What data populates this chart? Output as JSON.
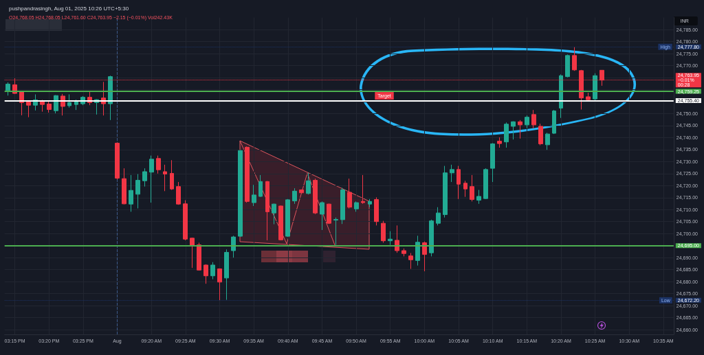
{
  "chart_data": {
    "type": "candlestick",
    "title": "pushpandrasingh, Aug 01, 2025 10:26 UTC+5:30",
    "subtitle": "O24,768.05 H24,768.05 L24,761.60 C24,763.95 −2.15 (−0.01%) Vol242.43K",
    "ylabel": "INR",
    "categories": [
      null,
      "03:15 PM",
      null,
      null,
      null,
      null,
      "03:20 PM",
      null,
      null,
      null,
      null,
      "03:25 PM",
      null,
      null,
      null,
      null,
      "Aug",
      null,
      null,
      null,
      null,
      "09:20 AM",
      null,
      null,
      null,
      null,
      "09:25 AM",
      null,
      null,
      null,
      null,
      "09:30 AM",
      null,
      null,
      null,
      null,
      "09:35 AM",
      null,
      null,
      null,
      null,
      "09:40 AM",
      null,
      null,
      null,
      null,
      "09:45 AM",
      null,
      null,
      null,
      null,
      "09:50 AM",
      null,
      null,
      null,
      null,
      "09:55 AM",
      null,
      null,
      null,
      null,
      "10:00 AM",
      null,
      null,
      null,
      null,
      "10:05 AM",
      null,
      null,
      null,
      null,
      "10:10 AM",
      null,
      null,
      null,
      null,
      "10:15 AM",
      null,
      null,
      null,
      null,
      "10:20 AM",
      null,
      null,
      null,
      null,
      "10:25 AM",
      null,
      null,
      null,
      null,
      "10:30 AM",
      null,
      null,
      null,
      null,
      "10:35 AM",
      null
    ],
    "ohlc": [
      [
        24759.6,
        24763.0,
        24757.5,
        24762.3
      ],
      [
        24762.0,
        24764.7,
        24758.2,
        24758.4
      ],
      [
        24759.2,
        24759.4,
        24749.3,
        24754.6
      ],
      [
        24755.2,
        24755.5,
        24748.5,
        24753.5
      ],
      [
        24753.5,
        24758.0,
        24751.3,
        24755.7
      ],
      [
        24755.0,
        24755.7,
        24750.8,
        24753.8
      ],
      [
        24754.0,
        24755.5,
        24750.4,
        24751.7
      ],
      [
        24751.2,
        24757.7,
        24750.1,
        24757.5
      ],
      [
        24757.3,
        24758.2,
        24749.2,
        24753.0
      ],
      [
        24753.3,
        24758.0,
        24752.5,
        24754.6
      ],
      [
        24753.8,
        24755.8,
        24751.5,
        24755.2
      ],
      [
        24754.1,
        24757.3,
        24753.5,
        24756.8
      ],
      [
        24756.8,
        24759.4,
        24753.5,
        24754.6
      ],
      [
        24754.6,
        24756.0,
        24749.6,
        24755.8
      ],
      [
        24756.5,
        24763.2,
        24749.2,
        24754.1
      ],
      [
        24754.1,
        24765.8,
        24747.3,
        24765.4
      ],
      [
        24737.7,
        24737.9,
        24722.5,
        24723.1
      ],
      [
        24722.9,
        24727.2,
        24712.2,
        24712.4
      ],
      [
        24712.3,
        24724.4,
        24709.1,
        24718.0
      ],
      [
        24716.4,
        24724.8,
        24710.5,
        24722.2
      ],
      [
        24722.0,
        24727.2,
        24719.6,
        24725.8
      ],
      [
        24725.6,
        24732.5,
        24712.9,
        24731.0
      ],
      [
        24731.3,
        24732.5,
        24725.0,
        24726.6
      ],
      [
        24725.8,
        24728.7,
        24717.7,
        24724.8
      ],
      [
        24725.1,
        24730.6,
        24718.2,
        24718.6
      ],
      [
        24719.6,
        24721.5,
        24712.0,
        24712.3
      ],
      [
        24712.4,
        24713.9,
        24697.2,
        24697.7
      ],
      [
        24698.1,
        24698.3,
        24685.7,
        24694.8
      ],
      [
        24695.3,
        24696.2,
        24684.6,
        24684.8
      ],
      [
        24686.9,
        24687.2,
        24679.1,
        24682.4
      ],
      [
        24682.4,
        24688.1,
        24681.0,
        24686.9
      ],
      [
        24685.3,
        24685.5,
        24672.2,
        24679.8
      ],
      [
        24681.5,
        24693.4,
        24672.4,
        24692.2
      ],
      [
        24692.9,
        24699.1,
        24690.0,
        24698.6
      ],
      [
        24698.9,
        24734.8,
        24698.7,
        24734.6
      ],
      [
        24736.0,
        24736.3,
        24712.9,
        24713.4
      ],
      [
        24712.9,
        24720.3,
        24711.5,
        24716.1
      ],
      [
        24715.5,
        24724.4,
        24715.3,
        24721.7
      ],
      [
        24721.7,
        24721.9,
        24697.2,
        24709.1
      ],
      [
        24708.6,
        24712.5,
        24703.9,
        24712.3
      ],
      [
        24711.5,
        24711.7,
        24697.2,
        24697.4
      ],
      [
        24698.9,
        24714.4,
        24698.6,
        24714.1
      ],
      [
        24713.6,
        24718.9,
        24712.4,
        24717.7
      ],
      [
        24718.2,
        24718.4,
        24716.8,
        24717.0
      ],
      [
        24716.7,
        24725.3,
        24716.3,
        24722.0
      ],
      [
        24722.2,
        24722.9,
        24708.1,
        24708.6
      ],
      [
        24708.1,
        24713.4,
        24701.5,
        24712.9
      ],
      [
        24712.3,
        24712.5,
        24704.0,
        24704.3
      ],
      [
        24705.6,
        24706.7,
        24695.3,
        24705.9
      ],
      [
        24705.8,
        24719.1,
        24704.0,
        24718.2
      ],
      [
        24717.2,
        24722.9,
        24710.5,
        24711.0
      ],
      [
        24710.3,
        24713.4,
        24709.1,
        24712.9
      ],
      [
        24713.4,
        24724.4,
        24712.4,
        24712.9
      ],
      [
        24712.3,
        24714.4,
        24711.0,
        24713.4
      ],
      [
        24714.2,
        24715.1,
        24703.4,
        24705.0
      ],
      [
        24704.3,
        24705.3,
        24696.2,
        24697.0
      ],
      [
        24697.0,
        24701.0,
        24695.3,
        24697.7
      ],
      [
        24697.2,
        24703.4,
        24692.0,
        24692.9
      ],
      [
        24692.9,
        24693.8,
        24690.5,
        24691.7
      ],
      [
        24690.7,
        24691.9,
        24685.3,
        24689.1
      ],
      [
        24688.8,
        24699.1,
        24686.7,
        24696.4
      ],
      [
        24696.2,
        24696.7,
        24684.3,
        24691.3
      ],
      [
        24692.0,
        24705.8,
        24690.5,
        24705.3
      ],
      [
        24704.3,
        24711.0,
        24703.4,
        24708.6
      ],
      [
        24707.9,
        24728.2,
        24706.7,
        24725.3
      ],
      [
        24725.3,
        24728.7,
        24721.5,
        24726.7
      ],
      [
        24726.7,
        24728.2,
        24714.4,
        24720.6
      ],
      [
        24721.0,
        24722.0,
        24715.3,
        24718.6
      ],
      [
        24719.6,
        24724.4,
        24713.4,
        24714.2
      ],
      [
        24713.9,
        24718.2,
        24712.4,
        24715.5
      ],
      [
        24714.6,
        24727.2,
        24714.4,
        24726.7
      ],
      [
        24727.2,
        24737.7,
        24721.5,
        24737.4
      ],
      [
        24738.5,
        24740.1,
        24735.8,
        24737.5
      ],
      [
        24738.2,
        24746.3,
        24735.8,
        24745.6
      ],
      [
        24744.7,
        24746.8,
        24739.2,
        24746.6
      ],
      [
        24746.6,
        24747.3,
        24739.6,
        24745.3
      ],
      [
        24745.3,
        24749.2,
        24743.9,
        24748.5
      ],
      [
        24749.6,
        24751.5,
        24743.9,
        24745.3
      ],
      [
        24744.7,
        24745.8,
        24736.8,
        24737.4
      ],
      [
        24737.0,
        24742.0,
        24734.9,
        24741.5
      ],
      [
        24741.8,
        24751.5,
        24741.5,
        24751.1
      ],
      [
        24752.3,
        24766.3,
        24748.2,
        24765.8
      ],
      [
        24765.4,
        24774.6,
        24765.1,
        24774.2
      ],
      [
        24774.2,
        24777.8,
        24767.8,
        24768.2
      ],
      [
        24767.9,
        24768.2,
        24751.7,
        24756.5
      ],
      [
        24757.0,
        24758.7,
        24755.3,
        24755.8
      ],
      [
        24756.1,
        24766.8,
        24755.5,
        24765.8
      ],
      [
        24768.05,
        24768.05,
        24761.6,
        24763.95
      ],
      null,
      null,
      null,
      null,
      null,
      null,
      null,
      null,
      null,
      null
    ],
    "colors": [
      "#22ab94",
      "#f23645",
      "#f23645",
      "#f23645",
      "#22ab94",
      "#f23645",
      "#f23645",
      "#22ab94",
      "#f23645",
      "#22ab94",
      "#22ab94",
      "#22ab94",
      "#f23645",
      "#22ab94",
      "#f23645",
      "#22ab94",
      "#f23645",
      "#f23645",
      "#22ab94",
      "#22ab94",
      "#22ab94",
      "#22ab94",
      "#f23645",
      "#f23645",
      "#f23645",
      "#f23645",
      "#f23645",
      "#f23645",
      "#f23645",
      "#f23645",
      "#22ab94",
      "#f23645",
      "#22ab94",
      "#22ab94",
      "#22ab94",
      "#f23645",
      "#22ab94",
      "#22ab94",
      "#f23645",
      "#22ab94",
      "#f23645",
      "#22ab94",
      "#22ab94",
      "#f23645",
      "#22ab94",
      "#f23645",
      "#22ab94",
      "#f23645",
      "#22ab94",
      "#22ab94",
      "#f23645",
      "#22ab94",
      "#f23645",
      "#22ab94",
      "#f23645",
      "#f23645",
      "#22ab94",
      "#f23645",
      "#f23645",
      "#f23645",
      "#22ab94",
      "#f23645",
      "#22ab94",
      "#22ab94",
      "#22ab94",
      "#22ab94",
      "#f23645",
      "#f23645",
      "#f23645",
      "#22ab94",
      "#22ab94",
      "#22ab94",
      "#f23645",
      "#22ab94",
      "#22ab94",
      "#f23645",
      "#22ab94",
      "#f23645",
      "#f23645",
      "#22ab94",
      "#22ab94",
      "#22ab94",
      "#22ab94",
      "#f23645",
      "#f23645",
      "#f23645",
      "#22ab94",
      "#f23645",
      null,
      null,
      null,
      null,
      null,
      null,
      null,
      null,
      null,
      null
    ],
    "ylim": [
      24658,
      24790
    ],
    "yticks": [
      {
        "value": 24660,
        "label": "24,660.00"
      },
      {
        "value": 24665,
        "label": "24,665.00"
      },
      {
        "value": 24670,
        "label": "24,670.00"
      },
      {
        "value": 24675,
        "label": "24,675.00"
      },
      {
        "value": 24680,
        "label": "24,680.00"
      },
      {
        "value": 24685,
        "label": "24,685.00"
      },
      {
        "value": 24690,
        "label": "24,690.00"
      },
      {
        "value": 24695,
        "label": null
      },
      {
        "value": 24700,
        "label": "24,700.00"
      },
      {
        "value": 24705,
        "label": "24,705.00"
      },
      {
        "value": 24710,
        "label": "24,710.00"
      },
      {
        "value": 24715,
        "label": "24,715.00"
      },
      {
        "value": 24720,
        "label": "24,720.00"
      },
      {
        "value": 24725,
        "label": "24,725.00"
      },
      {
        "value": 24730,
        "label": "24,730.00"
      },
      {
        "value": 24735,
        "label": "24,735.00"
      },
      {
        "value": 24740,
        "label": "24,740.00"
      },
      {
        "value": 24745,
        "label": "24,745.00"
      },
      {
        "value": 24750,
        "label": "24,750.00"
      },
      {
        "value": 24755,
        "label": null
      },
      {
        "value": 24760,
        "label": null
      },
      {
        "value": 24765,
        "label": null
      },
      {
        "value": 24770,
        "label": "24,770.00"
      },
      {
        "value": 24775,
        "label": "24,775.00"
      },
      {
        "value": 24780,
        "label": "24,780.00"
      },
      {
        "value": 24785,
        "label": "24,785.00"
      }
    ],
    "grid": true,
    "ref_lines": [
      {
        "axis": "x",
        "value": "Aug",
        "color": "#3d5a8a",
        "line_style": "dashed"
      },
      {
        "axis": "y",
        "value": 24777.8,
        "label": "24,777.80",
        "color": "#1c3366",
        "line_style": "dotted"
      },
      {
        "axis": "y",
        "value": 24763.95,
        "label": "24,763.95\n−0.01%\n00:28",
        "color": "#f23645",
        "line_style": "dotted"
      },
      {
        "axis": "y",
        "value": 24759.25,
        "label": "24,759.25",
        "color": "#4caf50",
        "line_style": "solid"
      },
      {
        "axis": "y",
        "value": 24755.4,
        "label": "24,755.40",
        "color": "#ffffff",
        "line_style": "solid"
      },
      {
        "axis": "y",
        "value": 24695,
        "label": "24,695.00",
        "color": "#4caf50",
        "line_style": "solid"
      },
      {
        "axis": "y",
        "value": 24672.2,
        "label": "24,672.20",
        "color": "#1c3366",
        "line_style": "dotted"
      }
    ],
    "annotations": [
      {
        "text": "High",
        "y": 24777.8
      },
      {
        "text": "Low",
        "y": 24672.2
      },
      {
        "text": "Target",
        "y": 24757.4
      }
    ]
  }
}
